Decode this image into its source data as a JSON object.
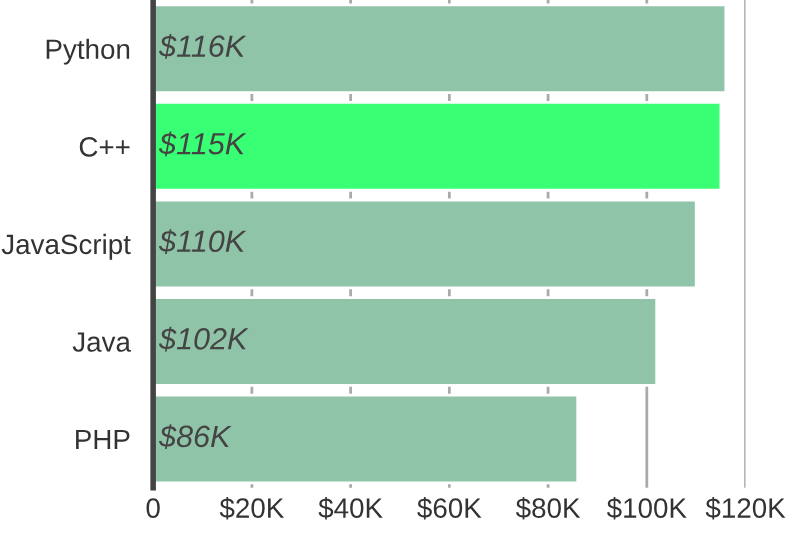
{
  "chart_data": {
    "type": "bar",
    "orientation": "horizontal",
    "categories": [
      "Python",
      "C++",
      "JavaScript",
      "Java",
      "PHP"
    ],
    "values": [
      116000,
      115000,
      110000,
      102000,
      86000
    ],
    "colors": [
      "#8fc4a8",
      "#39ff74",
      "#8fc4a8",
      "#8fc4a8",
      "#8fc4a8"
    ],
    "value_labels": [
      "$116K",
      "$115K",
      "$110K",
      "$102K",
      "$86K"
    ],
    "xlim": [
      0,
      120000
    ],
    "xticks": [
      0,
      {
        "value": 20000,
        "label": "$20K"
      },
      {
        "value": 40000,
        "label": "$40K"
      },
      {
        "value": 60000,
        "label": "$60K"
      },
      {
        "value": 80000,
        "label": "$80K"
      },
      {
        "value": 100000,
        "label": "$100K"
      },
      {
        "value": 120000,
        "label": "$120K"
      }
    ],
    "grid": "x"
  }
}
